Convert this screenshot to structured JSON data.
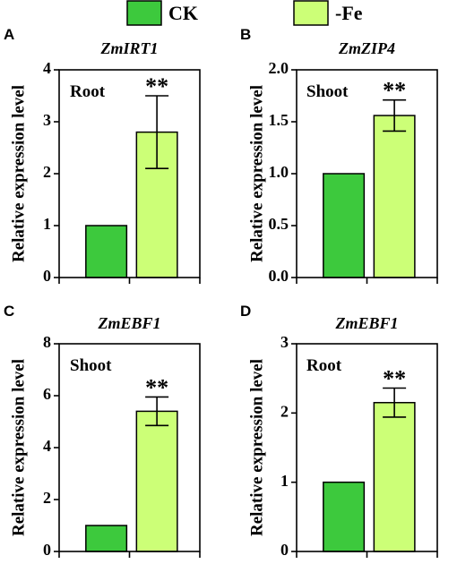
{
  "legend": {
    "items": [
      {
        "label": "CK",
        "color": "#3dc93d"
      },
      {
        "label": "-Fe",
        "color": "#ccff77"
      }
    ]
  },
  "chart_data": [
    {
      "type": "bar",
      "panel_letter": "A",
      "title": "ZmIRT1",
      "tissue": "Root",
      "ylabel": "Relative expression level",
      "xlabel": "",
      "ylim": [
        0,
        4
      ],
      "yticks": [
        "0",
        "1",
        "2",
        "3",
        "4"
      ],
      "categories": [
        "CK",
        "-Fe"
      ],
      "values": [
        1.0,
        2.8
      ],
      "errors": [
        0,
        0.7
      ],
      "significance": "**"
    },
    {
      "type": "bar",
      "panel_letter": "B",
      "title": "ZmZIP4",
      "tissue": "Shoot",
      "ylabel": "Relative expression level",
      "xlabel": "",
      "ylim": [
        0,
        2.0
      ],
      "yticks": [
        "0.0",
        "0.5",
        "1.0",
        "1.5",
        "2.0"
      ],
      "categories": [
        "CK",
        "-Fe"
      ],
      "values": [
        1.0,
        1.56
      ],
      "errors": [
        0,
        0.15
      ],
      "significance": "**"
    },
    {
      "type": "bar",
      "panel_letter": "C",
      "title": "ZmEBF1",
      "tissue": "Shoot",
      "ylabel": "Relative expression level",
      "xlabel": "",
      "ylim": [
        0,
        8
      ],
      "yticks": [
        "0",
        "2",
        "4",
        "6",
        "8"
      ],
      "categories": [
        "CK",
        "-Fe"
      ],
      "values": [
        1.0,
        5.4
      ],
      "errors": [
        0,
        0.55
      ],
      "significance": "**"
    },
    {
      "type": "bar",
      "panel_letter": "D",
      "title": "ZmEBF1",
      "tissue": "Root",
      "ylabel": "Relative expression level",
      "xlabel": "",
      "ylim": [
        0,
        3
      ],
      "yticks": [
        "0",
        "1",
        "2",
        "3"
      ],
      "categories": [
        "CK",
        "-Fe"
      ],
      "values": [
        1.0,
        2.15
      ],
      "errors": [
        0,
        0.21
      ],
      "significance": "**"
    }
  ]
}
